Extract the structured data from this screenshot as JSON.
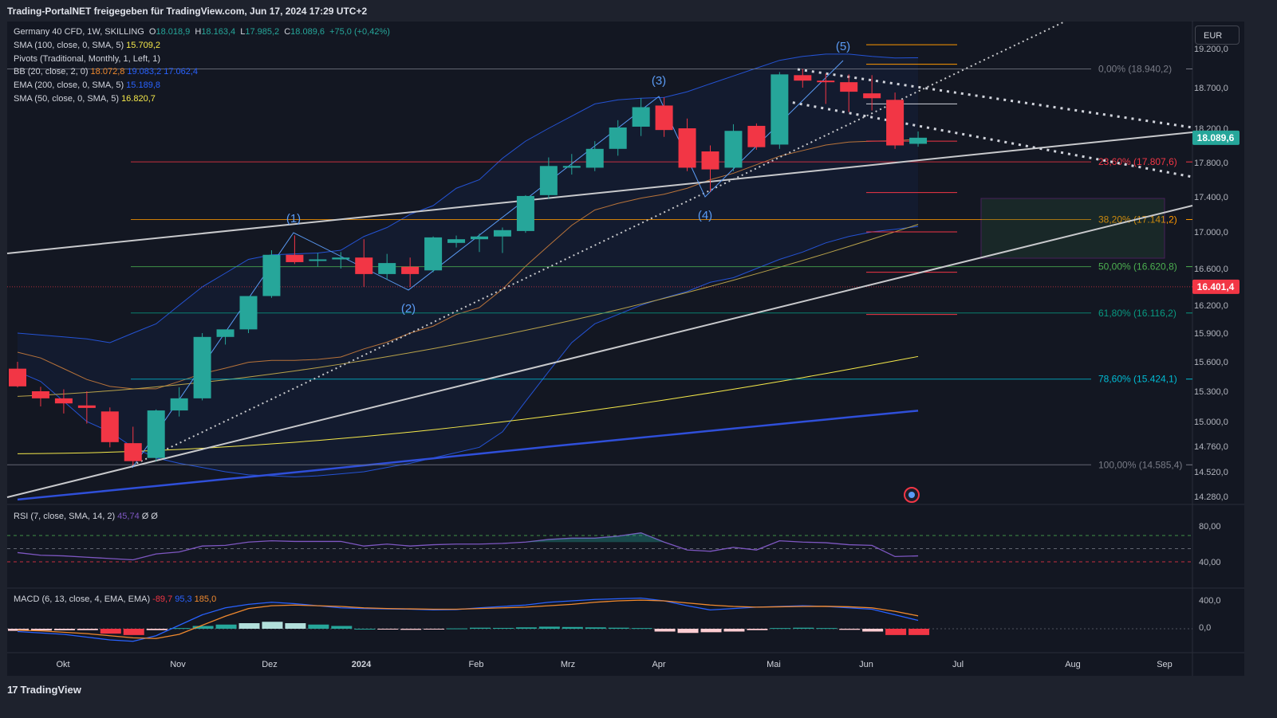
{
  "header": {
    "text": "Trading-PortalNET freigegeben für TradingView.com, Jun 17, 2024 17:29 UTC+2"
  },
  "legend": {
    "symbol": {
      "name": "Germany 40 CFD, 1W, SKILLING",
      "o_label": "O",
      "o": "18.018,9",
      "h_label": "H",
      "h": "18.163,4",
      "l_label": "L",
      "l": "17.985,2",
      "c_label": "C",
      "c": "18.089,6",
      "chg": "+75,0 (+0,42%)"
    },
    "sma100": {
      "name": "SMA (100, close, 0, SMA, 5)",
      "value": "15.709,2"
    },
    "pivots": {
      "name": "Pivots (Traditional, Monthly, 1, Left, 1)"
    },
    "bb": {
      "name": "BB (20, close, 2, 0)",
      "v1": "18.072,8",
      "v2": "19.083,2",
      "v3": "17.062,4"
    },
    "ema200": {
      "name": "EMA (200, close, 0, SMA, 5)",
      "value": "15.189,8"
    },
    "sma50": {
      "name": "SMA (50, close, 0, SMA, 5)",
      "value": "16.820,7"
    }
  },
  "currency_button": "EUR",
  "rsi": {
    "name": "RSI (7, close, SMA, 14, 2)",
    "value": "45,74",
    "e1": "Ø",
    "e2": "Ø"
  },
  "macd": {
    "name": "MACD (6, 13, close, 4, EMA, EMA)",
    "v1": "-89,7",
    "v2": "95,3",
    "v3": "185,0"
  },
  "footer": {
    "logo_mark": "17",
    "brand": "TradingView"
  },
  "colors": {
    "bg": "#131722",
    "up": "#26a69a",
    "down": "#f23645",
    "bb_line": "#2962ff",
    "ema200": "#2f4fd9",
    "sma100": "#f5e94a",
    "sma50": "#b8a24a",
    "bb_mid": "#b8733a",
    "trend": "#c8c9cc",
    "price_label": "#26a69a",
    "pivot_label": "#f23645"
  },
  "chart_data": {
    "type": "candlestick",
    "y_axis_ticks": [
      "19.200,0",
      "18.700,0",
      "18.200,0",
      "17.800,0",
      "17.400,0",
      "17.000,0",
      "16.600,0",
      "16.200,0",
      "15.900,0",
      "15.600,0",
      "15.300,0",
      "15.000,0",
      "14.760,0",
      "14.520,0",
      "14.280,0"
    ],
    "x_axis_labels": [
      "Okt",
      "Nov",
      "Dez",
      "2024",
      "Feb",
      "Mrz",
      "Apr",
      "Mai",
      "Jun",
      "Jul",
      "Aug",
      "Sep"
    ],
    "candles": [
      {
        "o": 15530,
        "h": 15600,
        "l": 15340,
        "c": 15350
      },
      {
        "o": 15300,
        "h": 15345,
        "l": 15150,
        "c": 15230
      },
      {
        "o": 15230,
        "h": 15320,
        "l": 15080,
        "c": 15180
      },
      {
        "o": 15160,
        "h": 15300,
        "l": 14980,
        "c": 15135
      },
      {
        "o": 15100,
        "h": 15140,
        "l": 14750,
        "c": 14800
      },
      {
        "o": 14790,
        "h": 14950,
        "l": 14580,
        "c": 14620
      },
      {
        "o": 14650,
        "h": 15120,
        "l": 14620,
        "c": 15110
      },
      {
        "o": 15110,
        "h": 15340,
        "l": 15050,
        "c": 15230
      },
      {
        "o": 15230,
        "h": 15900,
        "l": 15210,
        "c": 15860
      },
      {
        "o": 15860,
        "h": 15920,
        "l": 15780,
        "c": 15940
      },
      {
        "o": 15940,
        "h": 16300,
        "l": 15900,
        "c": 16300
      },
      {
        "o": 16300,
        "h": 16800,
        "l": 16280,
        "c": 16750
      },
      {
        "o": 16750,
        "h": 16962,
        "l": 16650,
        "c": 16670
      },
      {
        "o": 16690,
        "h": 16770,
        "l": 16620,
        "c": 16700
      },
      {
        "o": 16700,
        "h": 16780,
        "l": 16600,
        "c": 16720
      },
      {
        "o": 16720,
        "h": 16920,
        "l": 16400,
        "c": 16540
      },
      {
        "o": 16540,
        "h": 16760,
        "l": 16480,
        "c": 16660
      },
      {
        "o": 16620,
        "h": 16720,
        "l": 16400,
        "c": 16540
      },
      {
        "o": 16580,
        "h": 16950,
        "l": 16560,
        "c": 16940
      },
      {
        "o": 16880,
        "h": 16960,
        "l": 16830,
        "c": 16920
      },
      {
        "o": 16920,
        "h": 16980,
        "l": 16780,
        "c": 16950
      },
      {
        "o": 16950,
        "h": 17050,
        "l": 16770,
        "c": 17020
      },
      {
        "o": 17010,
        "h": 17420,
        "l": 16990,
        "c": 17410
      },
      {
        "o": 17420,
        "h": 17860,
        "l": 17380,
        "c": 17760
      },
      {
        "o": 17740,
        "h": 17900,
        "l": 17660,
        "c": 17760
      },
      {
        "o": 17740,
        "h": 18050,
        "l": 17700,
        "c": 17960
      },
      {
        "o": 17960,
        "h": 18300,
        "l": 17880,
        "c": 18210
      },
      {
        "o": 18220,
        "h": 18570,
        "l": 18110,
        "c": 18460
      },
      {
        "o": 18480,
        "h": 18580,
        "l": 18100,
        "c": 18180
      },
      {
        "o": 18200,
        "h": 18320,
        "l": 17700,
        "c": 17740
      },
      {
        "o": 17930,
        "h": 18000,
        "l": 17460,
        "c": 17720
      },
      {
        "o": 17740,
        "h": 18250,
        "l": 17700,
        "c": 18170
      },
      {
        "o": 18230,
        "h": 18260,
        "l": 17950,
        "c": 17980
      },
      {
        "o": 18010,
        "h": 18900,
        "l": 17960,
        "c": 18870
      },
      {
        "o": 18860,
        "h": 18940,
        "l": 18700,
        "c": 18790
      },
      {
        "o": 18790,
        "h": 18880,
        "l": 18500,
        "c": 18770
      },
      {
        "o": 18770,
        "h": 18870,
        "l": 18400,
        "c": 18650
      },
      {
        "o": 18630,
        "h": 18860,
        "l": 18420,
        "c": 18570
      },
      {
        "o": 18550,
        "h": 18640,
        "l": 17960,
        "c": 18000
      },
      {
        "o": 18019,
        "h": 18163,
        "l": 17985,
        "c": 18090
      }
    ],
    "fib_levels": [
      {
        "label": "0,00% (18.940,2)",
        "value": 18940.2
      },
      {
        "label": "23,60% (17.807,6)",
        "value": 17807.6
      },
      {
        "label": "38,20% (17.141,2)",
        "value": 17141.2
      },
      {
        "label": "50,00% (16.620,8)",
        "value": 16620.8
      },
      {
        "label": "61,80% (16.116,2)",
        "value": 16116.2
      },
      {
        "label": "78,60% (15.424,1)",
        "value": 15424.1
      },
      {
        "label": "100,00% (14.585,4)",
        "value": 14585.4
      }
    ],
    "price_labels": [
      {
        "text": "18.089,6",
        "value": 18089.6
      },
      {
        "text": "16.401,4",
        "value": 16401.4
      }
    ],
    "wave_labels": [
      "(1)",
      "(2)",
      "(3)",
      "(4)",
      "(5)"
    ],
    "rsi_axis": [
      "80,00",
      "40,00"
    ],
    "macd_axis": [
      "400,0",
      "0,0"
    ]
  }
}
